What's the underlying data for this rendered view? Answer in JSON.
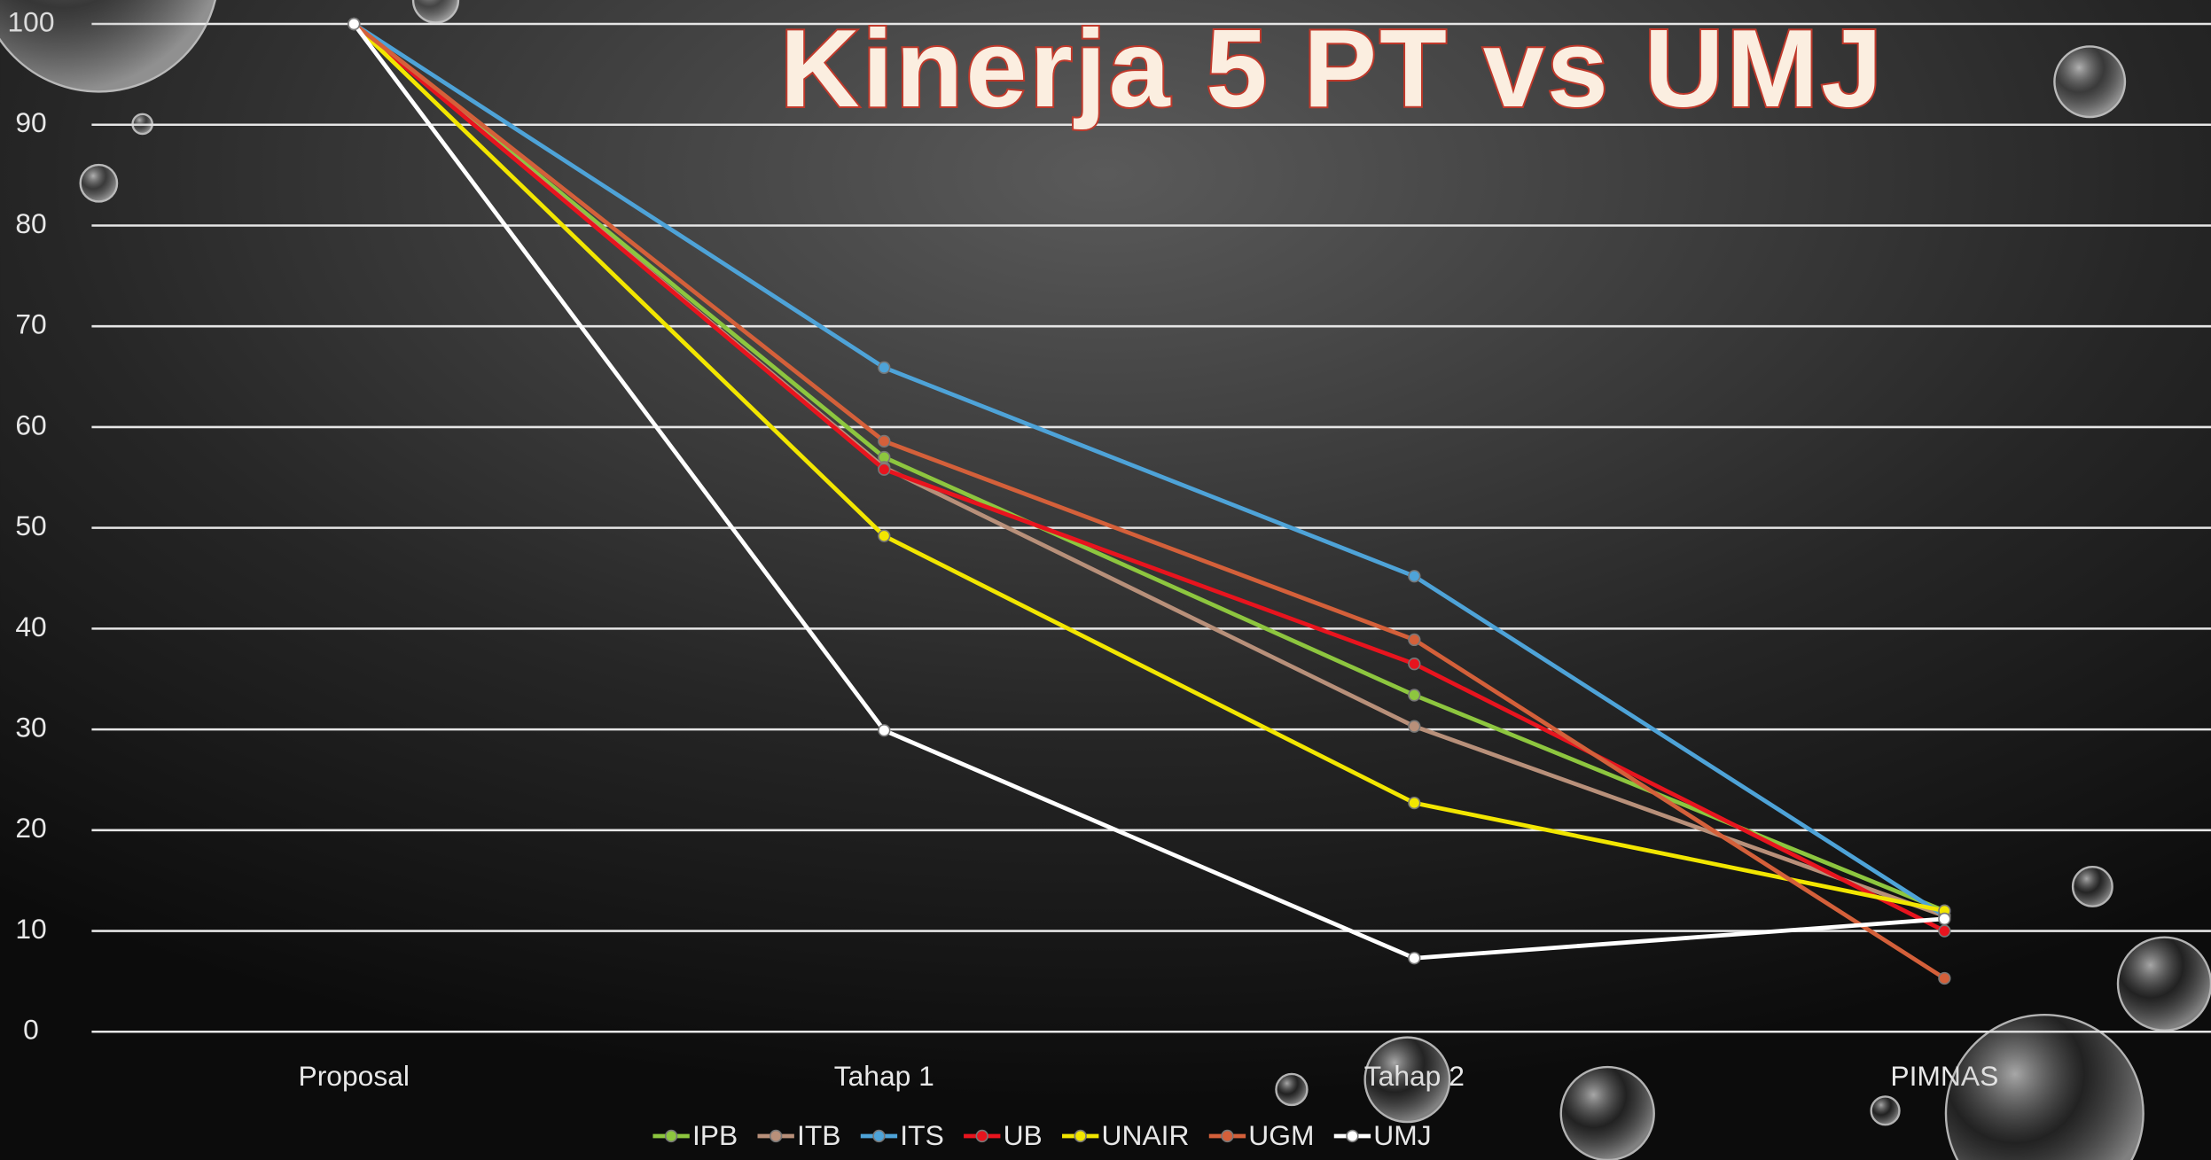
{
  "chart_data": {
    "type": "line",
    "title": "Kinerja 5 PT vs UMJ",
    "categories": [
      "Proposal",
      "Tahap 1",
      "Tahap 2",
      "PIMNAS"
    ],
    "series": [
      {
        "name": "IPB",
        "color": "#8dc63f",
        "values": [
          100,
          57,
          33.4,
          12
        ]
      },
      {
        "name": "ITB",
        "color": "#b8907a",
        "values": [
          100,
          56,
          30.3,
          11.5
        ]
      },
      {
        "name": "ITS",
        "color": "#4ea3d8",
        "values": [
          100,
          65.9,
          45.2,
          11.5
        ]
      },
      {
        "name": "UB",
        "color": "#e8141e",
        "values": [
          100,
          55.8,
          36.5,
          10
        ]
      },
      {
        "name": "UNAIR",
        "color": "#f2e600",
        "values": [
          100,
          49.2,
          22.7,
          12
        ]
      },
      {
        "name": "UGM",
        "color": "#d4603a",
        "values": [
          100,
          58.6,
          38.9,
          5.3
        ]
      },
      {
        "name": "UMJ",
        "color": "#ffffff",
        "values": [
          100,
          29.9,
          7.3,
          11.2
        ]
      }
    ],
    "ylim": [
      0,
      100
    ],
    "yticks": [
      0,
      10,
      20,
      30,
      40,
      50,
      60,
      70,
      80,
      90,
      100
    ],
    "grid": true,
    "legend": "bottom"
  }
}
